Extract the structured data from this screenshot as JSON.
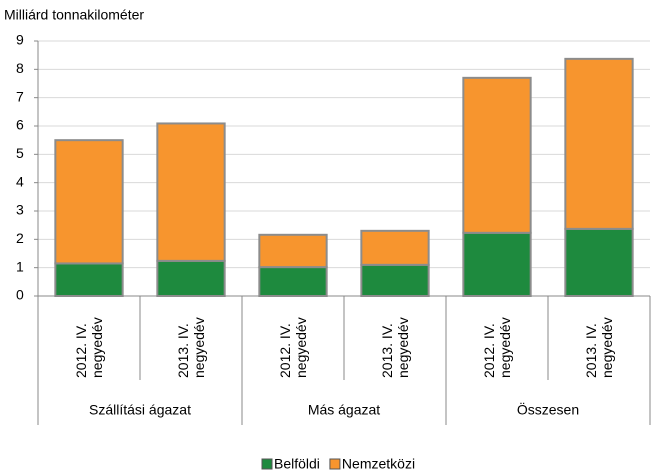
{
  "chart_data": {
    "type": "stacked_bar",
    "y_label": "Milliárd tonnakilométer",
    "categories": [
      "2012. IV. negyedév",
      "2013. IV. negyedév",
      "2012. IV. negyedév",
      "2013. IV. negyedév",
      "2012. IV. negyedév",
      "2013. IV. negyedév"
    ],
    "groups": [
      "Szállítási ágazat",
      "Más ágazat",
      "Összesen"
    ],
    "series": [
      {
        "name": "Belföldi",
        "color": "#1e8a3e",
        "values": [
          1.15,
          1.24,
          1.02,
          1.1,
          2.23,
          2.37
        ]
      },
      {
        "name": "Nemzetközi",
        "color": "#f7952e",
        "values": [
          4.35,
          4.85,
          1.14,
          1.2,
          5.47,
          6.0
        ]
      }
    ],
    "ylim": [
      0,
      9
    ],
    "yticks": [
      0,
      1,
      2,
      3,
      4,
      5,
      6,
      7,
      8,
      9
    ],
    "grid": true,
    "legend": "bottom"
  }
}
